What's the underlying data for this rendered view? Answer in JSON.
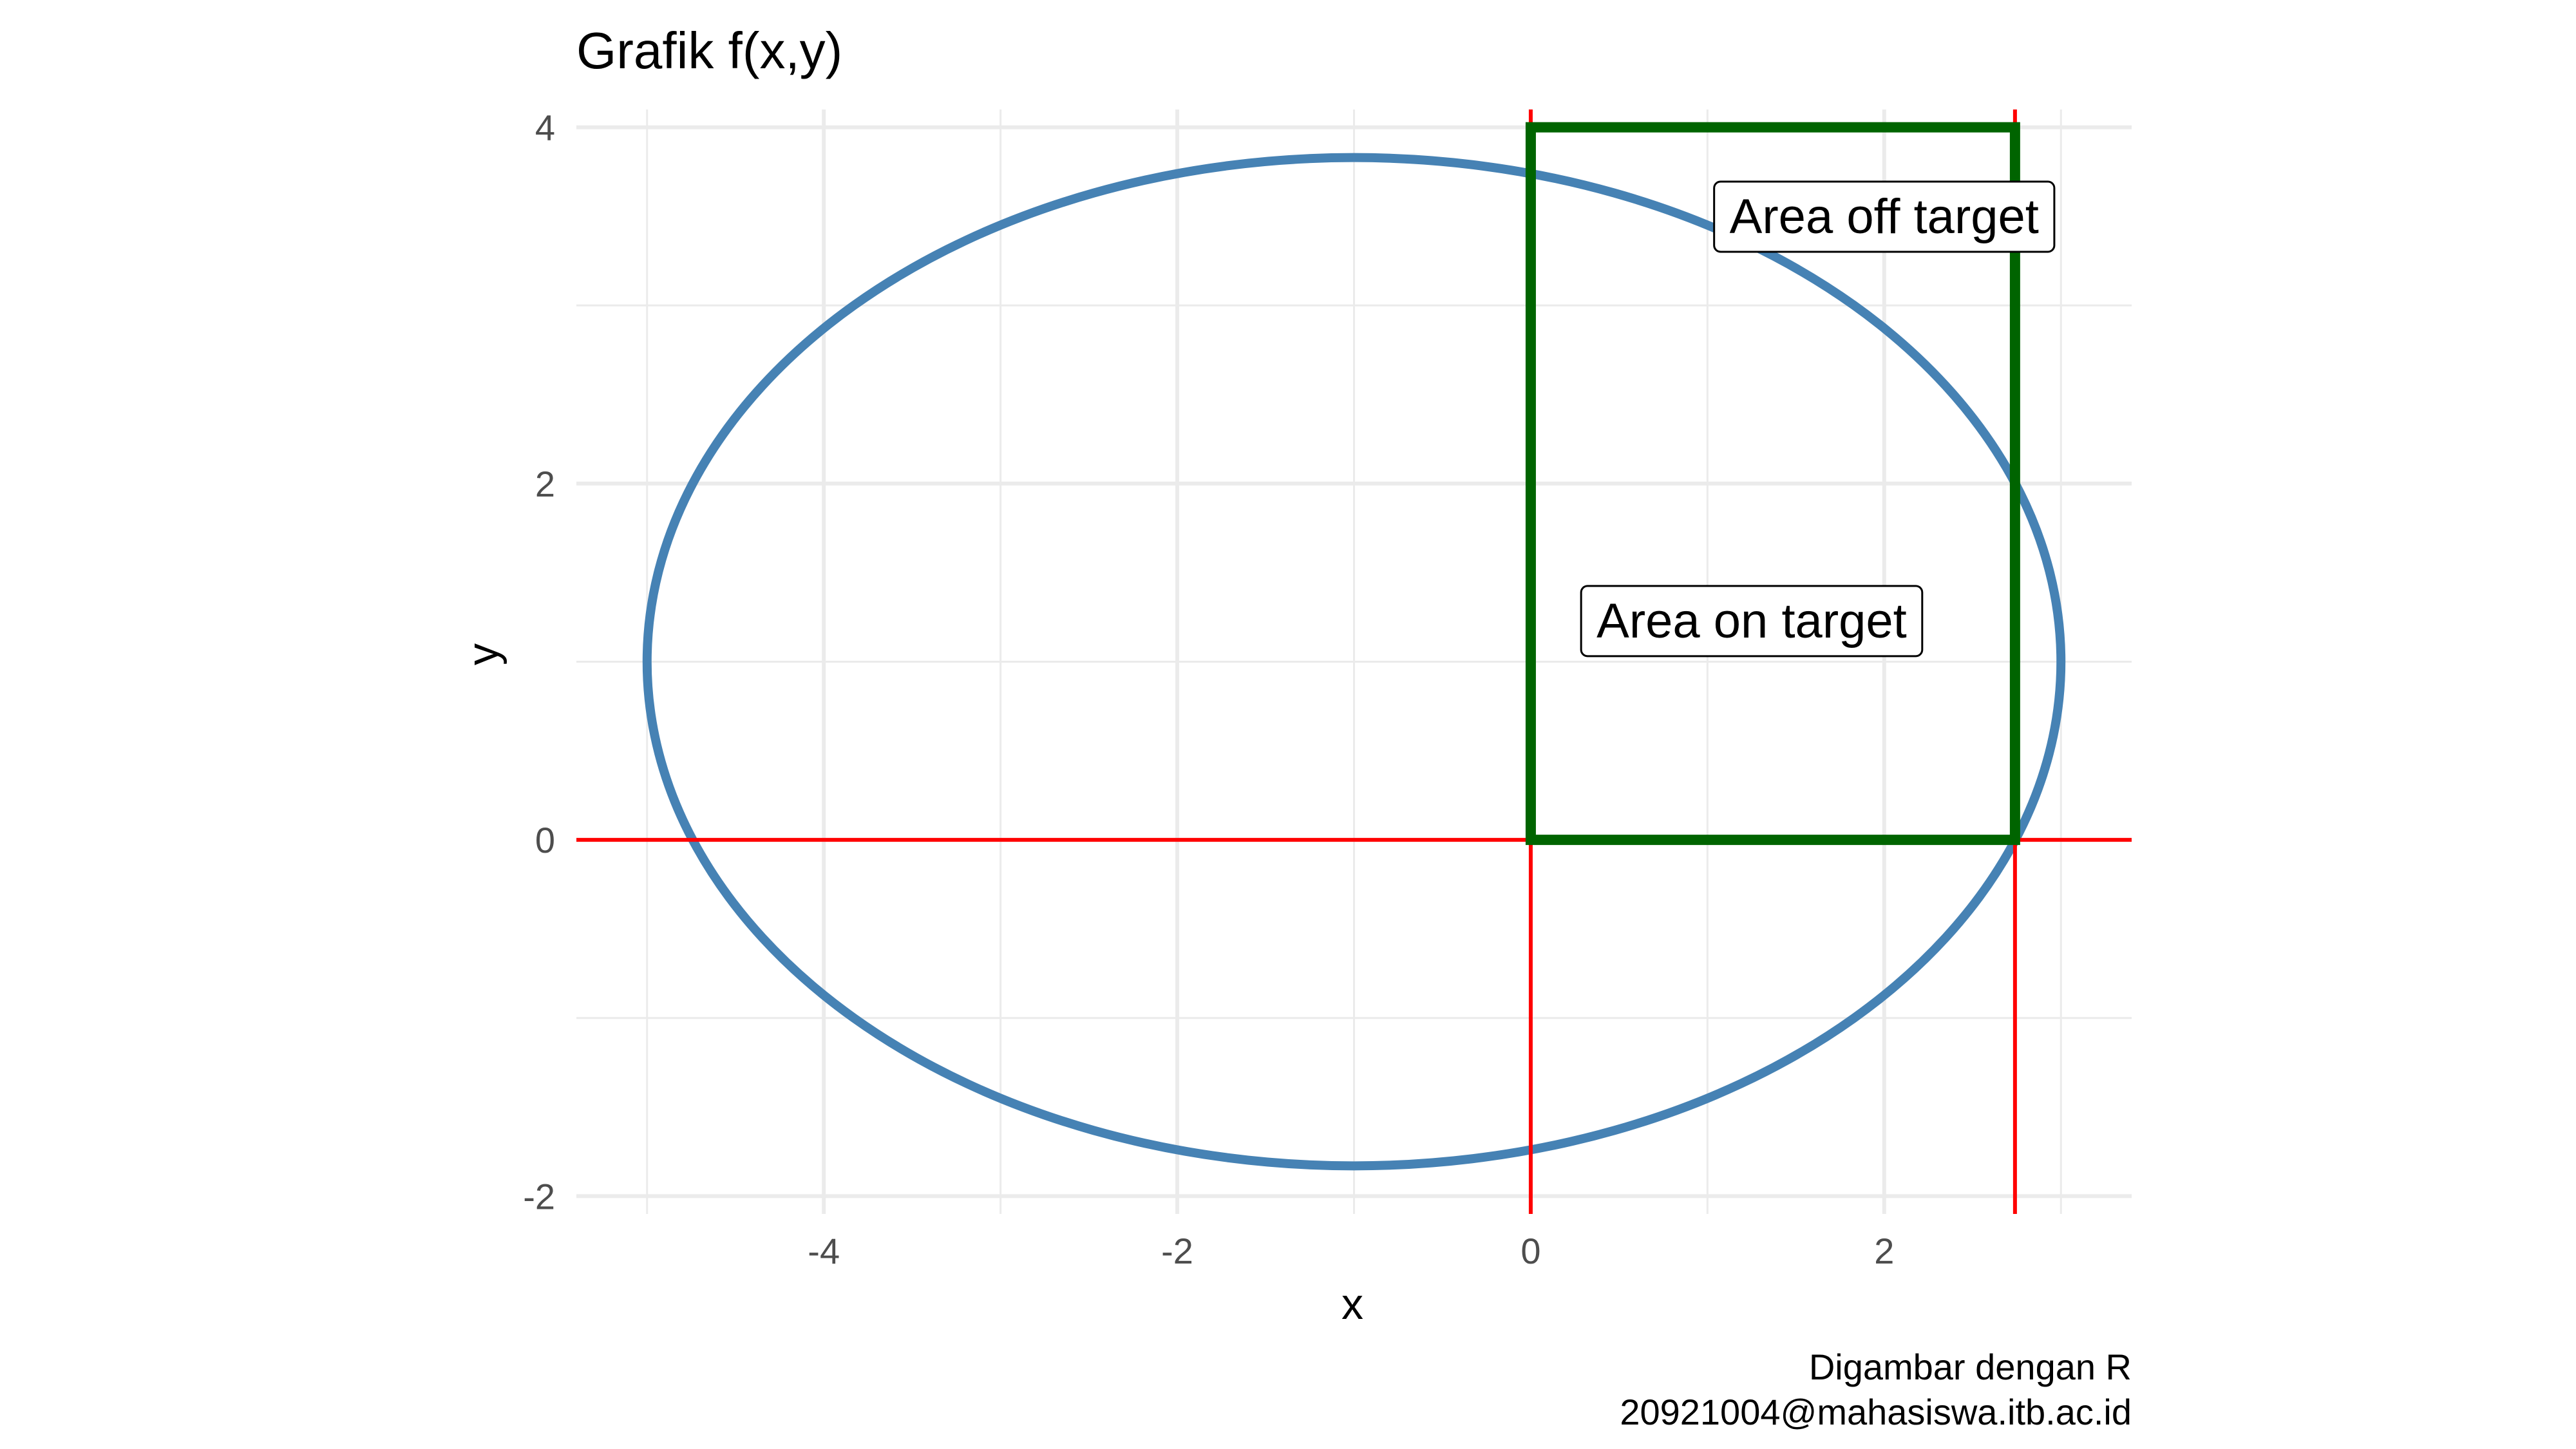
{
  "chart_data": {
    "type": "line",
    "title": "Grafik f(x,y)",
    "xlabel": "x",
    "ylabel": "y",
    "xlim": [
      -5.4,
      3.4
    ],
    "ylim": [
      -2.1,
      4.1
    ],
    "x_ticks": [
      {
        "value": -4,
        "label": "-4"
      },
      {
        "value": -2,
        "label": "-2"
      },
      {
        "value": 0,
        "label": "0"
      },
      {
        "value": 2,
        "label": "2"
      }
    ],
    "x_minor_ticks": [
      -5,
      -3,
      -1,
      1,
      3
    ],
    "y_ticks": [
      {
        "value": -2,
        "label": "-2"
      },
      {
        "value": 0,
        "label": "0"
      },
      {
        "value": 2,
        "label": "2"
      },
      {
        "value": 4,
        "label": "4"
      }
    ],
    "y_minor_ticks": [
      -1,
      1,
      3
    ],
    "grid": true,
    "ellipse": {
      "center": [
        -1,
        1
      ],
      "semi_axis_x": 4,
      "semi_axis_y": 2.83,
      "color": "#4682B4"
    },
    "reference_lines": {
      "color": "#FF0000",
      "horizontal_y": [
        0
      ],
      "vertical_x": [
        0,
        2.74
      ]
    },
    "rectangle": {
      "x": [
        0,
        2.74
      ],
      "y": [
        0,
        4
      ],
      "color": "#006400"
    },
    "annotations": [
      {
        "text": "Area off target",
        "x": 2.0,
        "y": 3.5
      },
      {
        "text": "Area on target",
        "x": 1.25,
        "y": 1.23
      }
    ],
    "caption": [
      "Digambar dengan R",
      "20921004@mahasiswa.itb.ac.id"
    ]
  }
}
